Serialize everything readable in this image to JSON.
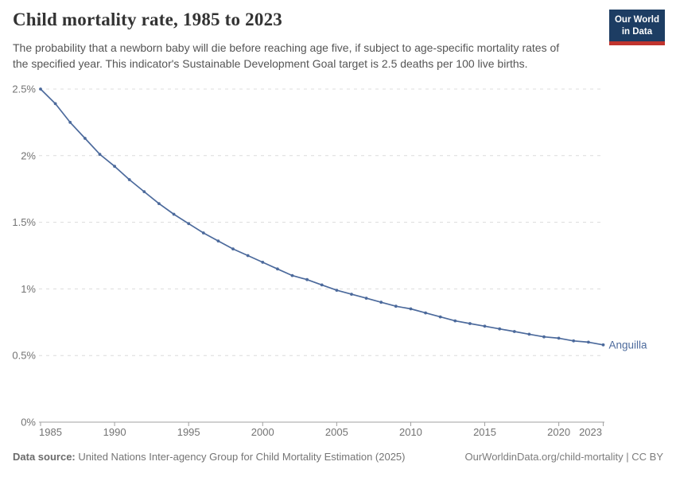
{
  "header": {
    "title": "Child mortality rate, 1985 to 2023",
    "subtitle": "The probability that a newborn baby will die before reaching age five, if subject to age-specific mortality rates of\nthe specified year. This indicator's Sustainable Development Goal target is 2.5 deaths per 100 live births.",
    "logo": {
      "line1": "Our World",
      "line2": "in Data"
    }
  },
  "chart_data": {
    "type": "line",
    "title": "Child mortality rate, 1985 to 2023",
    "xlabel": "",
    "ylabel": "",
    "x": [
      1985,
      1986,
      1987,
      1988,
      1989,
      1990,
      1991,
      1992,
      1993,
      1994,
      1995,
      1996,
      1997,
      1998,
      1999,
      2000,
      2001,
      2002,
      2003,
      2004,
      2005,
      2006,
      2007,
      2008,
      2009,
      2010,
      2011,
      2012,
      2013,
      2014,
      2015,
      2016,
      2017,
      2018,
      2019,
      2020,
      2021,
      2022,
      2023
    ],
    "series": [
      {
        "name": "Anguilla",
        "unit": "%",
        "values": [
          2.5,
          2.39,
          2.25,
          2.13,
          2.01,
          1.92,
          1.82,
          1.73,
          1.64,
          1.56,
          1.49,
          1.42,
          1.36,
          1.3,
          1.25,
          1.2,
          1.15,
          1.1,
          1.07,
          1.03,
          0.99,
          0.96,
          0.93,
          0.9,
          0.87,
          0.85,
          0.82,
          0.79,
          0.76,
          0.74,
          0.72,
          0.7,
          0.68,
          0.66,
          0.64,
          0.63,
          0.61,
          0.6,
          0.58
        ]
      }
    ],
    "ylim": [
      0,
      2.5
    ],
    "xlim": [
      1985,
      2023
    ],
    "ytick_values": [
      0,
      0.5,
      1,
      1.5,
      2,
      2.5
    ],
    "ytick_labels": [
      "0%",
      "0.5%",
      "1%",
      "1.5%",
      "2%",
      "2.5%"
    ],
    "xtick_values": [
      1985,
      1990,
      1995,
      2000,
      2005,
      2010,
      2015,
      2020,
      2023
    ],
    "xtick_labels": [
      "1985",
      "1990",
      "1995",
      "2000",
      "2005",
      "2010",
      "2015",
      "2020",
      "2023"
    ],
    "grid": "horizontal-dashed",
    "legend_position": "end-of-line",
    "end_label": "Anguilla"
  },
  "footer": {
    "source_label": "Data source:",
    "source_text": " United Nations Inter-agency Group for Child Mortality Estimation (2025)",
    "link_text": "OurWorldinData.org/child-mortality",
    "license_text": " | CC BY"
  },
  "colors": {
    "line": "#4c6a9c",
    "grid": "#dcdcdc",
    "axis": "#a0a0a0",
    "tick_label": "#737373",
    "title": "#333333",
    "subtitle": "#555555",
    "footer": "#757575",
    "logo_bg": "#1d3d63",
    "logo_accent": "#c0342e"
  }
}
